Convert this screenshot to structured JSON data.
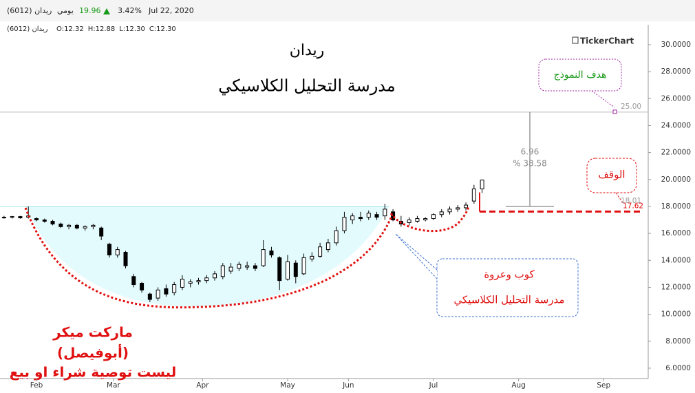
{
  "chart_data": {
    "type": "candlestick",
    "header": {
      "symbol": "ريدان (6012)",
      "period": "يومي",
      "last": 19.96,
      "change": "3.42%",
      "date": "Jul 22, 2020"
    },
    "readout": {
      "symbol": "ريدان (6012)",
      "items": [
        "O:12.32",
        "H:12.88",
        "L:12.30",
        "C:12.30"
      ]
    },
    "title": "ريدان",
    "subtitle": "مدرسة التحليل الكلاسيكي",
    "watermark": "TickerChart",
    "xlim": [
      -1,
      159
    ],
    "ylim": [
      5.23,
      31.48
    ],
    "xticks": [
      {
        "value": 8,
        "label": "Feb"
      },
      {
        "value": 27,
        "label": "Mar"
      },
      {
        "value": 49,
        "label": "Apr"
      },
      {
        "value": 70,
        "label": "May"
      },
      {
        "value": 85,
        "label": "Jun"
      },
      {
        "value": 106,
        "label": "Jul"
      },
      {
        "value": 127,
        "label": "Aug"
      },
      {
        "value": 148,
        "label": "Sep"
      }
    ],
    "yticks": [
      {
        "value": 6,
        "label": "6.0000"
      },
      {
        "value": 8,
        "label": "8.0000"
      },
      {
        "value": 10,
        "label": "10.0000"
      },
      {
        "value": 12,
        "label": "12.0000"
      },
      {
        "value": 14,
        "label": "14.0000"
      },
      {
        "value": 16,
        "label": "16.0000"
      },
      {
        "value": 18,
        "label": "18.0000"
      },
      {
        "value": 20,
        "label": "20.0000"
      },
      {
        "value": 22,
        "label": "22.0000"
      },
      {
        "value": 24,
        "label": "24.0000"
      },
      {
        "value": 26,
        "label": "26.0000"
      },
      {
        "value": 28,
        "label": "28.0000"
      },
      {
        "value": 30,
        "label": "30.0000"
      }
    ],
    "grid": false,
    "up_color": "#ffffff",
    "down_color": "#000000",
    "x": [
      0,
      2,
      4,
      6,
      8,
      10,
      12,
      14,
      16,
      18,
      20,
      22,
      24,
      26,
      28,
      30,
      32,
      34,
      36,
      38,
      40,
      42,
      44,
      46,
      48,
      50,
      52,
      54,
      56,
      58,
      60,
      62,
      64,
      66,
      68,
      70,
      72,
      74,
      76,
      78,
      80,
      82,
      84,
      86,
      88,
      90,
      92,
      94,
      96,
      98,
      100,
      102,
      104,
      106,
      108,
      110,
      112,
      114,
      116,
      118
    ],
    "open": [
      17.2,
      17.2,
      17.25,
      17.2,
      17.1,
      17.0,
      16.9,
      16.7,
      16.5,
      16.6,
      16.4,
      16.5,
      16.4,
      15.2,
      14.4,
      14.6,
      12.8,
      12.3,
      11.5,
      11.2,
      11.9,
      11.6,
      12.0,
      12.3,
      12.4,
      12.5,
      12.7,
      12.8,
      13.2,
      13.4,
      13.5,
      13.6,
      13.6,
      14.7,
      14.2,
      12.6,
      13.8,
      13.0,
      14.1,
      14.3,
      14.8,
      15.3,
      16.2,
      17.0,
      17.2,
      17.2,
      17.4,
      17.3,
      17.6,
      16.9,
      16.8,
      16.9,
      17.0,
      17.1,
      17.4,
      17.6,
      17.8,
      17.9,
      18.4,
      19.3
    ],
    "high": [
      17.3,
      17.3,
      17.3,
      18.0,
      17.2,
      17.1,
      17.0,
      16.8,
      16.7,
      16.7,
      16.6,
      16.7,
      16.5,
      15.3,
      15.0,
      14.7,
      13.0,
      12.4,
      11.6,
      12.0,
      12.2,
      12.4,
      12.9,
      12.6,
      12.7,
      12.9,
      13.2,
      13.8,
      13.8,
      13.9,
      13.9,
      13.8,
      15.5,
      15.0,
      14.3,
      14.4,
      14.0,
      14.5,
      14.6,
      15.3,
      15.6,
      16.5,
      17.6,
      17.5,
      17.6,
      17.7,
      17.6,
      18.2,
      17.8,
      17.3,
      17.2,
      17.3,
      17.2,
      17.5,
      17.8,
      18.0,
      18.1,
      18.3,
      19.6,
      20.0
    ],
    "low": [
      17.1,
      17.1,
      17.1,
      17.1,
      16.9,
      16.8,
      16.6,
      16.4,
      16.3,
      16.3,
      16.2,
      16.3,
      15.5,
      14.2,
      14.2,
      13.4,
      12.0,
      11.6,
      10.9,
      11.0,
      11.3,
      11.4,
      11.8,
      12.0,
      12.2,
      12.3,
      12.5,
      12.6,
      13.0,
      13.2,
      13.3,
      13.2,
      13.5,
      14.2,
      11.8,
      12.5,
      12.3,
      12.9,
      13.9,
      14.2,
      14.6,
      15.1,
      16.0,
      16.7,
      16.9,
      17.0,
      17.0,
      17.0,
      16.9,
      16.5,
      16.6,
      16.8,
      16.9,
      17.0,
      17.2,
      17.4,
      17.6,
      17.7,
      18.2,
      19.0
    ],
    "close": [
      17.2,
      17.25,
      17.15,
      17.3,
      17.0,
      16.9,
      16.7,
      16.5,
      16.6,
      16.4,
      16.5,
      16.6,
      15.8,
      14.4,
      14.8,
      13.6,
      12.2,
      11.8,
      11.1,
      11.8,
      11.5,
      12.2,
      12.6,
      12.4,
      12.5,
      12.7,
      13.0,
      13.6,
      13.5,
      13.7,
      13.6,
      13.4,
      14.8,
      14.4,
      12.5,
      13.9,
      12.8,
      14.2,
      14.3,
      15.0,
      15.3,
      16.2,
      17.2,
      17.3,
      17.1,
      17.5,
      17.2,
      17.8,
      17.0,
      16.7,
      17.0,
      17.1,
      17.1,
      17.4,
      17.6,
      17.8,
      17.9,
      18.1,
      19.3,
      19.96
    ],
    "target": {
      "text": "هدف النموذج",
      "value": 25,
      "label": "25.00"
    },
    "neckline": {
      "value": 18.01,
      "label": "18.01"
    },
    "stop": {
      "text": "الوقف",
      "value": 17.62,
      "label": "17.62"
    },
    "measure": {
      "difference": 6.96,
      "percent": {
        "value": 38.58,
        "label": "% 38.58"
      }
    },
    "pattern": {
      "name": "كوب وعروة",
      "school": "مدرسة التحليل الكلاسيكي"
    },
    "author": [
      "ماركت ميكر",
      "(أبوفيصل)",
      "ليست توصية شراء او بيع"
    ]
  }
}
